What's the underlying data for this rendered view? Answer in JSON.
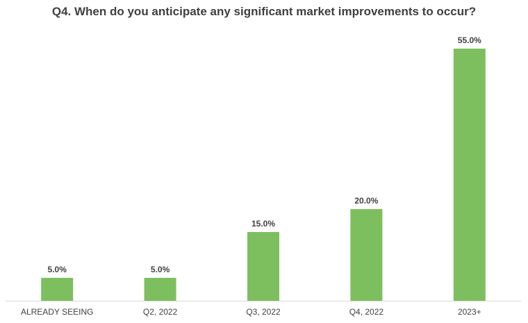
{
  "chart_data": {
    "type": "bar",
    "title": "Q4. When do you anticipate any significant market improvements to occur?",
    "categories": [
      "ALREADY SEEING",
      "Q2, 2022",
      "Q3, 2022",
      "Q4, 2022",
      "2023+"
    ],
    "values": [
      5.0,
      5.0,
      15.0,
      20.0,
      55.0
    ],
    "data_labels": [
      "5.0%",
      "5.0%",
      "15.0%",
      "20.0%",
      "55.0%"
    ],
    "xlabel": "",
    "ylabel": "",
    "ylim": [
      0,
      60
    ],
    "grid": false,
    "legend": "none",
    "bar_color": "#7dbf5f"
  }
}
